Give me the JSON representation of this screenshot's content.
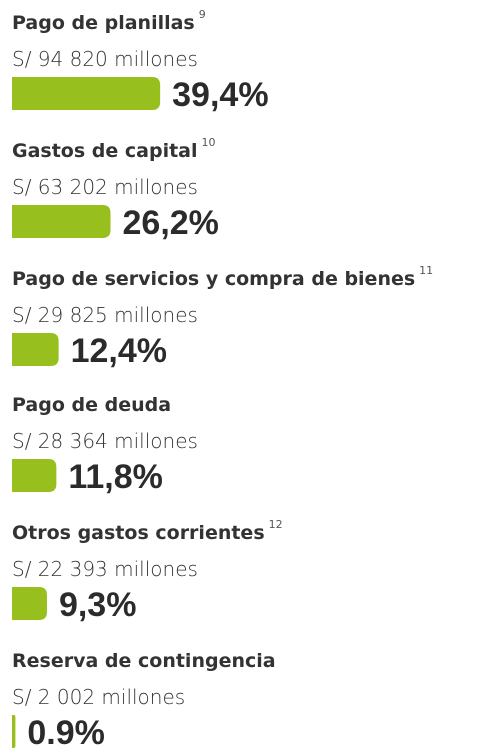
{
  "chart_data": {
    "type": "bar",
    "categories": [
      "Pago de planillas",
      "Gastos de capital",
      "Pago de servicios y compra de bienes",
      "Pago de deuda",
      "Otros gastos corrientes",
      "Reserva de contingencia"
    ],
    "notes": [
      "9",
      "10",
      "11",
      null,
      "12",
      null
    ],
    "amounts": [
      "S/ 94 820 millones",
      "S/ 63 202 millones",
      "S/ 29 825 millones",
      "S/ 28 364 millones",
      "S/ 22 393 millones",
      "S/ 2 002  millones"
    ],
    "values": [
      39.4,
      26.2,
      12.4,
      11.8,
      9.3,
      0.9
    ],
    "value_labels": [
      "39,4%",
      "26,2%",
      "12,4%",
      "11,8%",
      "9,3%",
      "0.9%"
    ],
    "color": "#97bf1e"
  }
}
